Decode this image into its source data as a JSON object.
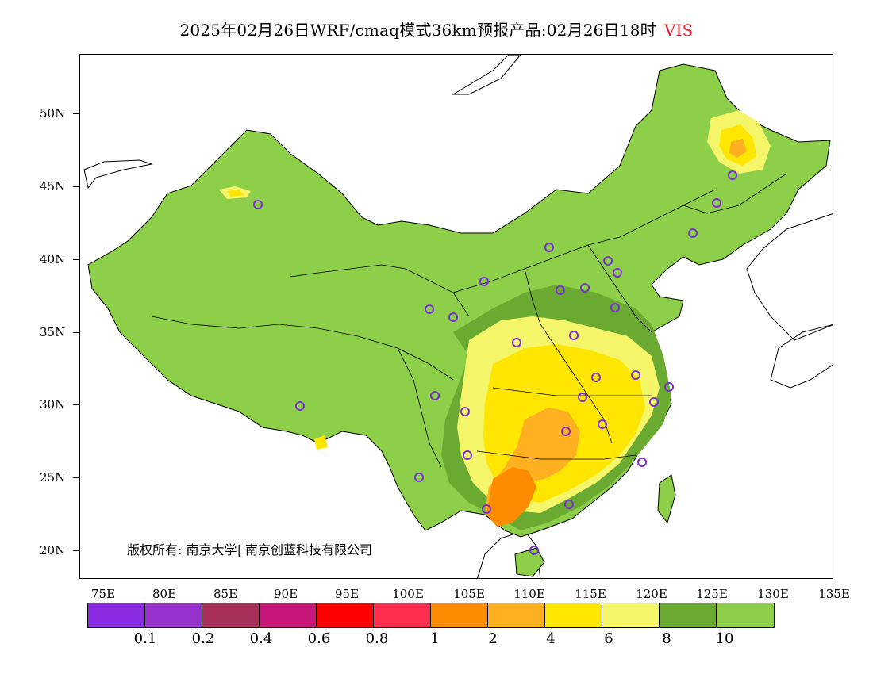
{
  "title": {
    "text": "2025年02月26日WRF/cmaq模式36km预报产品:02月26日18时",
    "variable": "VIS"
  },
  "axes": {
    "lat_labels": [
      "50N",
      "45N",
      "40N",
      "35N",
      "30N",
      "25N",
      "20N"
    ],
    "lon_labels": [
      "75E",
      "80E",
      "85E",
      "90E",
      "95E",
      "100E",
      "105E",
      "110E",
      "115E",
      "120E",
      "125E",
      "130E",
      "135E"
    ],
    "lon_range": [
      73,
      135
    ],
    "lat_range": [
      18,
      54
    ]
  },
  "copyright": "版权所有: 南京大学| 南京创蓝科技有限公司",
  "colorbar": {
    "colors": [
      "#8a2be2",
      "#9932cc",
      "#a8305a",
      "#c8177a",
      "#ff0000",
      "#ff2e4e",
      "#ff8c00",
      "#ffb020",
      "#ffe600",
      "#f5f56a",
      "#6aaa30",
      "#8ecf4a"
    ],
    "labels": [
      "0.1",
      "0.2",
      "0.4",
      "0.6",
      "0.8",
      "1",
      "2",
      "4",
      "6",
      "8",
      "10"
    ]
  },
  "colors": {
    "land_default": "#8ecf4a",
    "station_marker": "#7b2fd6",
    "boundary": "#000000"
  }
}
